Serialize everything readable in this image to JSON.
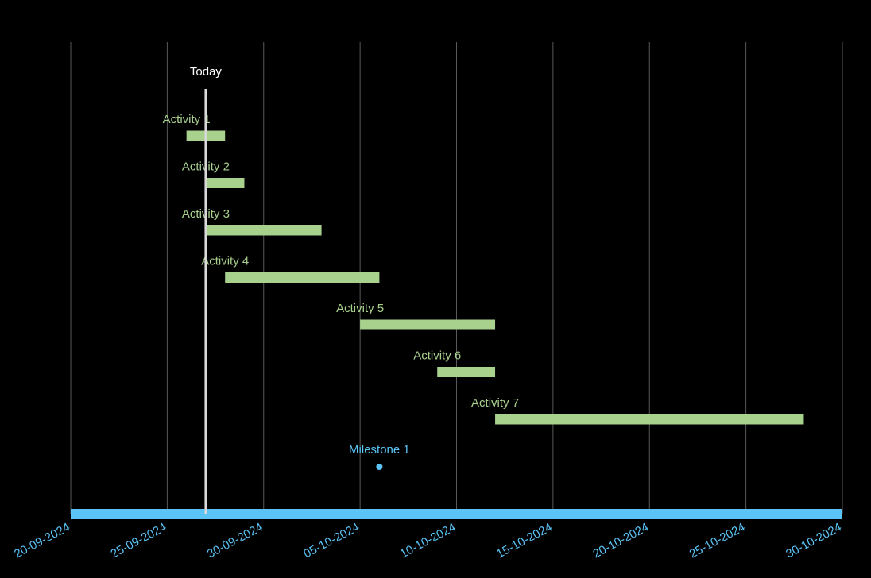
{
  "chart_data": {
    "type": "gantt",
    "title": "",
    "xlabel": "",
    "ylabel": "",
    "x_axis": {
      "range": [
        "20-09-2024",
        "30-10-2024"
      ],
      "ticks": [
        "20-09-2024",
        "25-09-2024",
        "30-09-2024",
        "05-10-2024",
        "10-10-2024",
        "15-10-2024",
        "20-10-2024",
        "25-10-2024",
        "30-10-2024"
      ],
      "grid": true
    },
    "today": {
      "label": "Today",
      "date": "27-09-2024"
    },
    "activities": [
      {
        "name": "Activity 1",
        "start": "26-09-2024",
        "end": "28-09-2024"
      },
      {
        "name": "Activity 2",
        "start": "27-09-2024",
        "end": "29-09-2024"
      },
      {
        "name": "Activity 3",
        "start": "27-09-2024",
        "end": "03-10-2024"
      },
      {
        "name": "Activity 4",
        "start": "28-09-2024",
        "end": "06-10-2024"
      },
      {
        "name": "Activity 5",
        "start": "05-10-2024",
        "end": "12-10-2024"
      },
      {
        "name": "Activity 6",
        "start": "09-10-2024",
        "end": "12-10-2024"
      },
      {
        "name": "Activity 7",
        "start": "12-10-2024",
        "end": "28-10-2024"
      }
    ],
    "milestones": [
      {
        "name": "Milestone 1",
        "date": "06-10-2024"
      }
    ],
    "colors": {
      "background": "#000000",
      "activity": "#a9d18e",
      "milestone": "#5bc3f5",
      "timeline": "#5bc3f5",
      "today_line": "#d9d9d9",
      "grid": "#595959"
    }
  }
}
